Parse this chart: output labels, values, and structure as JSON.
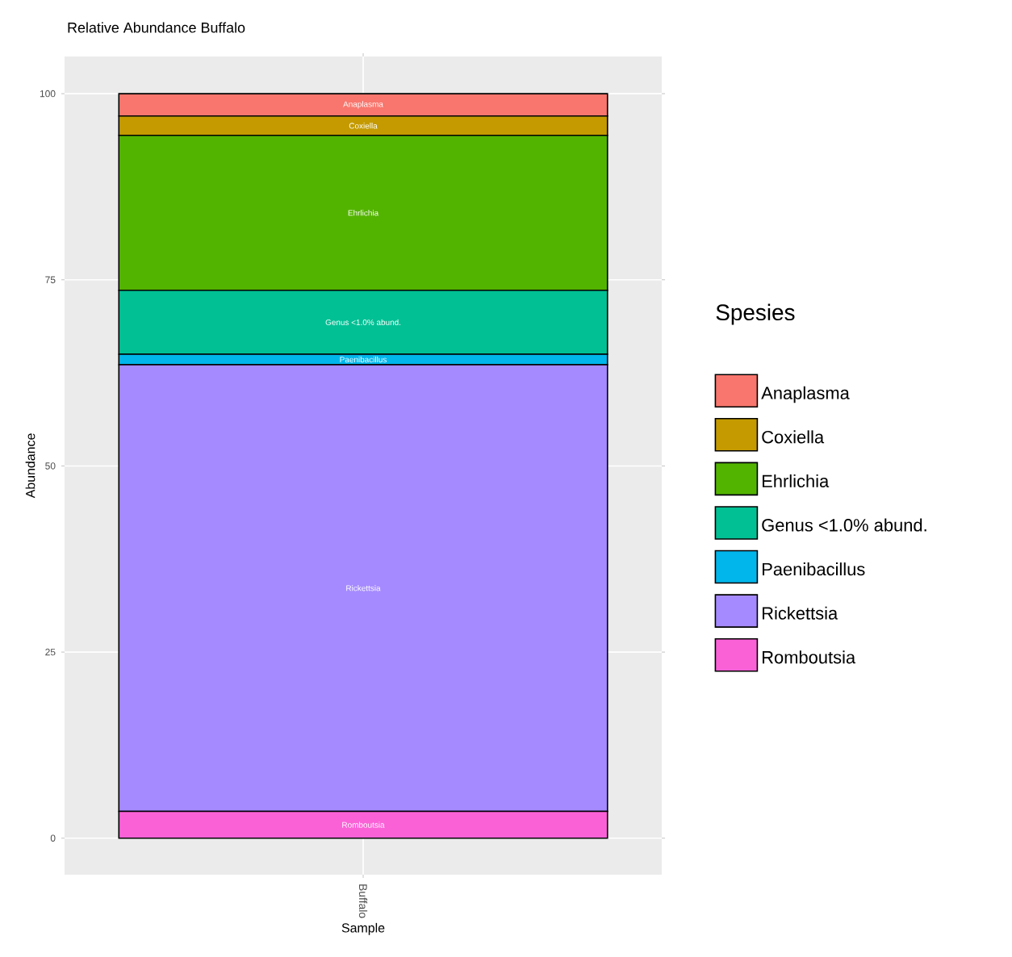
{
  "chart_data": {
    "type": "bar",
    "stacked": true,
    "title": "Relative Abundance Buffalo",
    "xlabel": "Sample",
    "ylabel": "Abundance",
    "legend_title": "Spesies",
    "categories": [
      "Buffalo"
    ],
    "series": [
      {
        "name": "Romboutsia",
        "color": "#fb61d7",
        "values": [
          3.6
        ]
      },
      {
        "name": "Rickettsia",
        "color": "#a58aff",
        "values": [
          60.0
        ]
      },
      {
        "name": "Paenibacillus",
        "color": "#00b6eb",
        "values": [
          1.4
        ]
      },
      {
        "name": "Genus <1.0% abund.",
        "color": "#00c094",
        "values": [
          8.6
        ]
      },
      {
        "name": "Ehrlichia",
        "color": "#53b400",
        "values": [
          20.8
        ]
      },
      {
        "name": "Coxiella",
        "color": "#c49a00",
        "values": [
          2.6
        ]
      },
      {
        "name": "Anaplasma",
        "color": "#f8766d",
        "values": [
          3.0
        ]
      }
    ],
    "ylim": [
      -4.9,
      105
    ],
    "yticks": [
      0,
      25,
      50,
      75,
      100
    ],
    "grid": true,
    "legend": "right"
  }
}
